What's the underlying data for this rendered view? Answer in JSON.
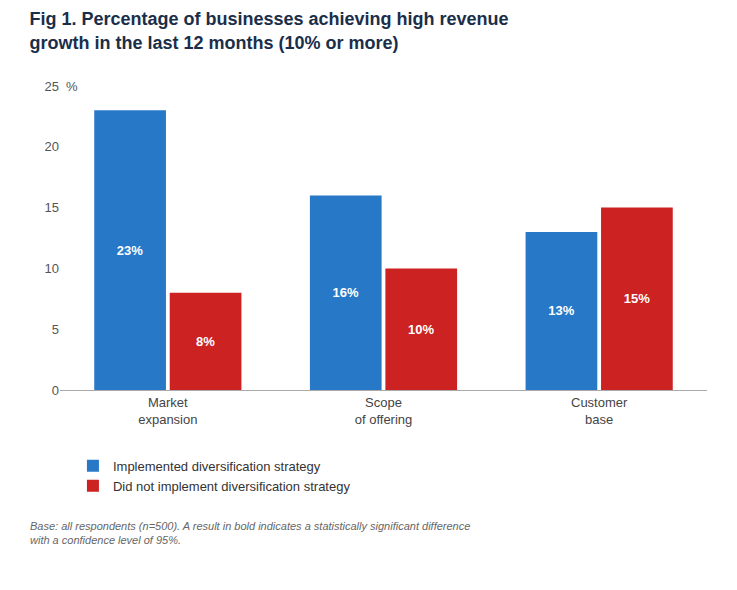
{
  "chart_data": {
    "type": "bar",
    "title": "Fig 1. Percentage of businesses achieving high revenue\ngrowth in the last 12 months (10% or more)",
    "categories": [
      "Market\nexpansion",
      "Scope\nof offering",
      "Customer\nbase"
    ],
    "series": [
      {
        "name": "Implemented diversification strategy",
        "color": "#2878c8",
        "values": [
          23,
          16,
          13
        ],
        "value_labels": [
          "23%",
          "16%",
          "13%"
        ]
      },
      {
        "name": "Did not implement diversification strategy",
        "color": "#cc2222",
        "values": [
          8,
          10,
          15
        ],
        "value_labels": [
          "8%",
          "10%",
          "15%"
        ]
      }
    ],
    "ylim": [
      0,
      25
    ],
    "yticks": [
      0,
      5,
      10,
      15,
      20,
      25
    ],
    "ylabel": "%",
    "footnote": "Base: all respondents (n=500). A result in bold indicates a statistically significant difference\nwith a confidence level of 95%.",
    "data_labels": true,
    "grid": false,
    "legend": "bottom"
  }
}
